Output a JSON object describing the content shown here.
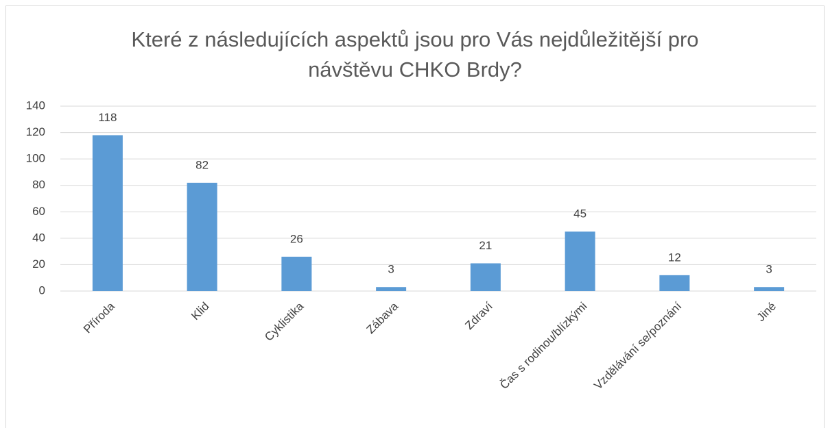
{
  "chart_data": {
    "type": "bar",
    "title": "Které z následujících aspektů jsou pro Vás nejdůležitější pro návštěvu CHKO Brdy?",
    "categories": [
      "Příroda",
      "Klid",
      "Cyklistika",
      "Zábava",
      "Zdraví",
      "Čas s rodinou/blízkými",
      "Vzdělávání se/poznání",
      "Jiné"
    ],
    "values": [
      118,
      82,
      26,
      3,
      21,
      45,
      12,
      3
    ],
    "color": "#5b9bd5",
    "ylim": [
      0,
      140
    ],
    "yticks": [
      0,
      20,
      40,
      60,
      80,
      100,
      120,
      140
    ],
    "grid": true
  }
}
